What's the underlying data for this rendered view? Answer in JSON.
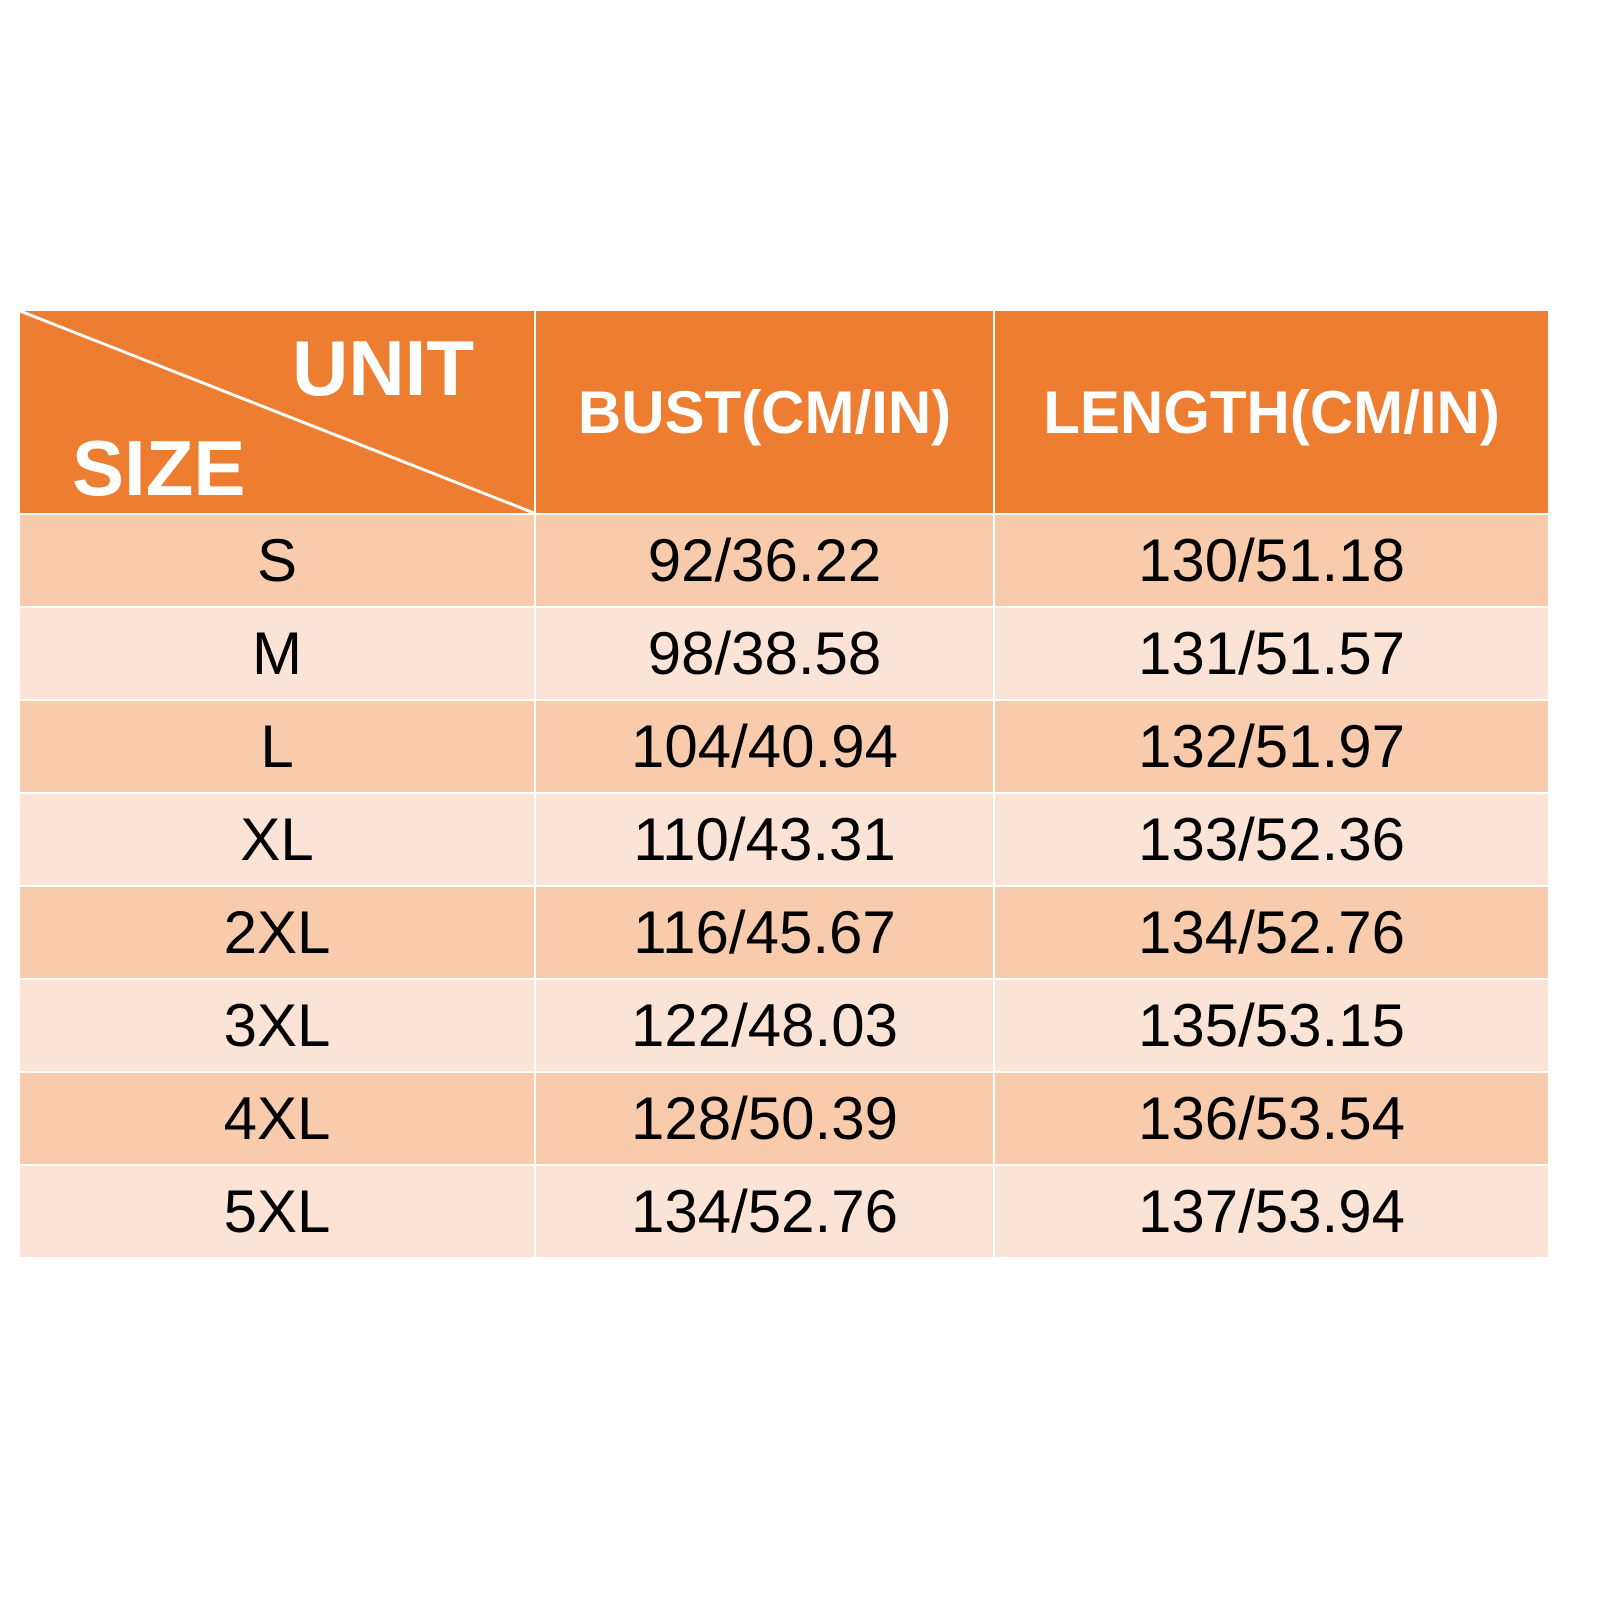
{
  "colors": {
    "header": "#ED7D31",
    "row_odd": "#F8CBAD",
    "row_even": "#FBE4D5"
  },
  "header": {
    "corner_top": "UNIT",
    "corner_bottom": "SIZE",
    "columns": [
      "BUST(CM/IN)",
      "LENGTH(CM/IN)"
    ]
  },
  "rows": [
    {
      "size": "S",
      "bust": "92/36.22",
      "length": "130/51.18"
    },
    {
      "size": "M",
      "bust": "98/38.58",
      "length": "131/51.57"
    },
    {
      "size": "L",
      "bust": "104/40.94",
      "length": "132/51.97"
    },
    {
      "size": "XL",
      "bust": "110/43.31",
      "length": "133/52.36"
    },
    {
      "size": "2XL",
      "bust": "116/45.67",
      "length": "134/52.76"
    },
    {
      "size": "3XL",
      "bust": "122/48.03",
      "length": "135/53.15"
    },
    {
      "size": "4XL",
      "bust": "128/50.39",
      "length": "136/53.54"
    },
    {
      "size": "5XL",
      "bust": "134/52.76",
      "length": "137/53.94"
    }
  ]
}
